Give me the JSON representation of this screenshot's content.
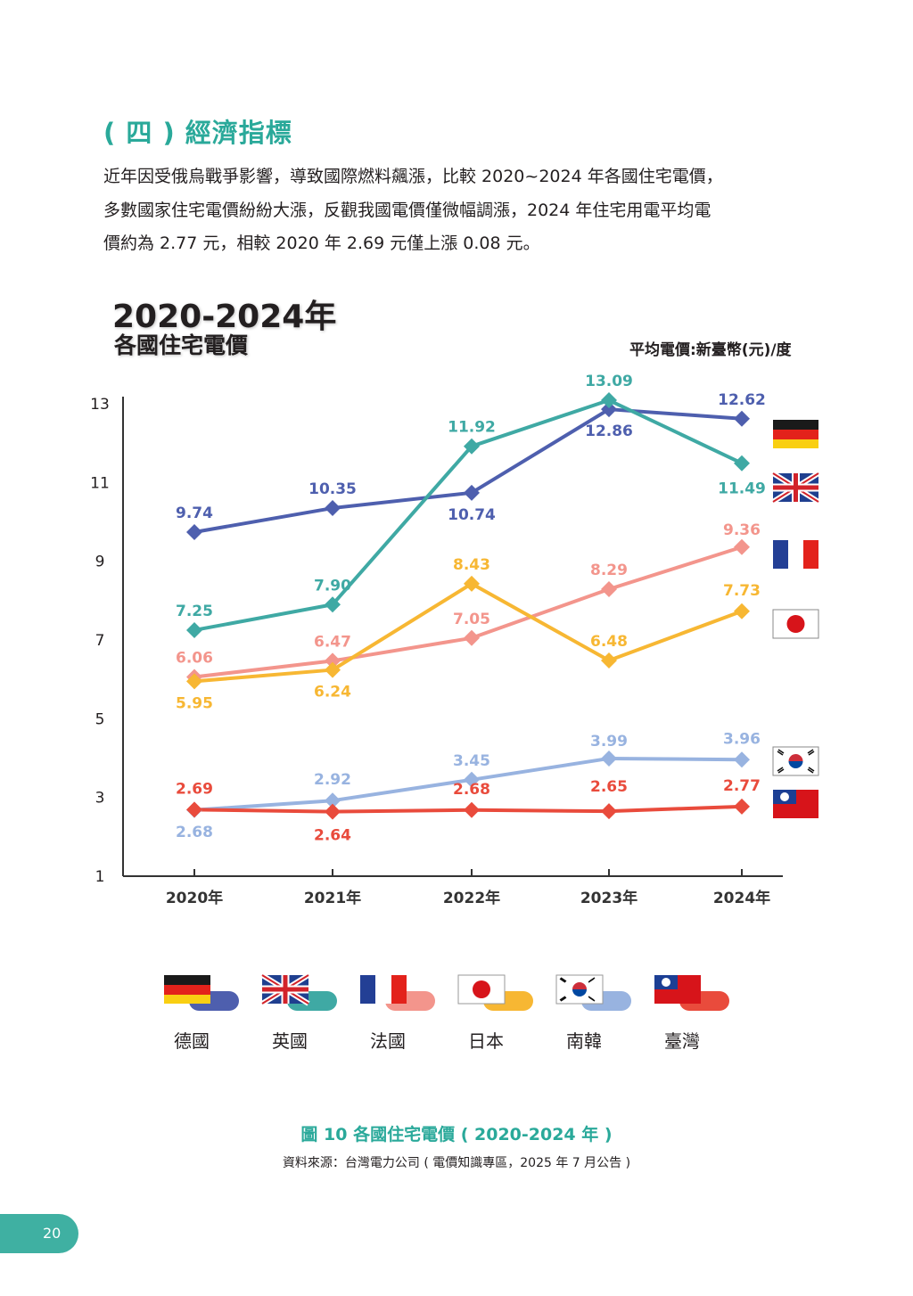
{
  "section_title": "( 四 ) 經濟指標",
  "paragraph_lines": [
    "近年因受俄烏戰爭影響，導致國際燃料飆漲，比較 2020~2024 年各國住宅電價，",
    "多數國家住宅電價紛紛大漲，反觀我國電價僅微幅調漲，2024 年住宅用電平均電",
    "價約為 2.77 元，相較 2020 年 2.69 元僅上漲 0.08 元。"
  ],
  "chart_data": {
    "type": "line",
    "title": "2020-2024年",
    "subtitle": "各國住宅電價",
    "unit_label": "平均電價:新臺幣(元)/度",
    "categories": [
      "2020年",
      "2021年",
      "2022年",
      "2023年",
      "2024年"
    ],
    "y_ticks": [
      "13",
      "11",
      "9",
      "7",
      "5",
      "3",
      "1"
    ],
    "ylim": [
      1,
      13
    ],
    "grid": false,
    "legend_position": "bottom",
    "series": [
      {
        "name": "德國",
        "color": "#4e5fae",
        "flag": "germany-flag-icon",
        "values": [
          9.74,
          10.35,
          10.74,
          12.86,
          12.62
        ],
        "label_dy": [
          -16,
          -16,
          30,
          30,
          -16
        ]
      },
      {
        "name": "英國",
        "color": "#3fa9a4",
        "flag": "uk-flag-icon",
        "values": [
          7.25,
          7.9,
          11.92,
          13.09,
          11.49
        ],
        "label_dy": [
          -16,
          -16,
          -16,
          -16,
          34
        ]
      },
      {
        "name": "法國",
        "color": "#f3958c",
        "flag": "france-flag-icon",
        "values": [
          6.06,
          6.47,
          7.05,
          8.29,
          9.36
        ],
        "label_dy": [
          -16,
          -16,
          -16,
          -16,
          -14
        ]
      },
      {
        "name": "日本",
        "color": "#f7b733",
        "flag": "japan-flag-icon",
        "values": [
          5.95,
          6.24,
          8.43,
          6.48,
          7.73
        ],
        "label_dy": [
          30,
          30,
          -16,
          -16,
          -18
        ]
      },
      {
        "name": "南韓",
        "color": "#98b3e0",
        "flag": "korea-flag-icon",
        "values": [
          2.68,
          2.92,
          3.45,
          3.99,
          3.96
        ],
        "label_dy": [
          30,
          -18,
          -16,
          -14,
          -18
        ]
      },
      {
        "name": "臺灣",
        "color": "#e94b3c",
        "flag": "taiwan-flag-icon",
        "values": [
          2.69,
          2.64,
          2.68,
          2.65,
          2.77
        ],
        "label_dy": [
          -18,
          32,
          -18,
          -22,
          -18
        ]
      }
    ]
  },
  "caption": "圖 10 各國住宅電價 ( 2020-2024 年 )",
  "source": "資料來源：台灣電力公司 ( 電價知識專區，2025 年 7 月公告 )",
  "page_number": "20"
}
